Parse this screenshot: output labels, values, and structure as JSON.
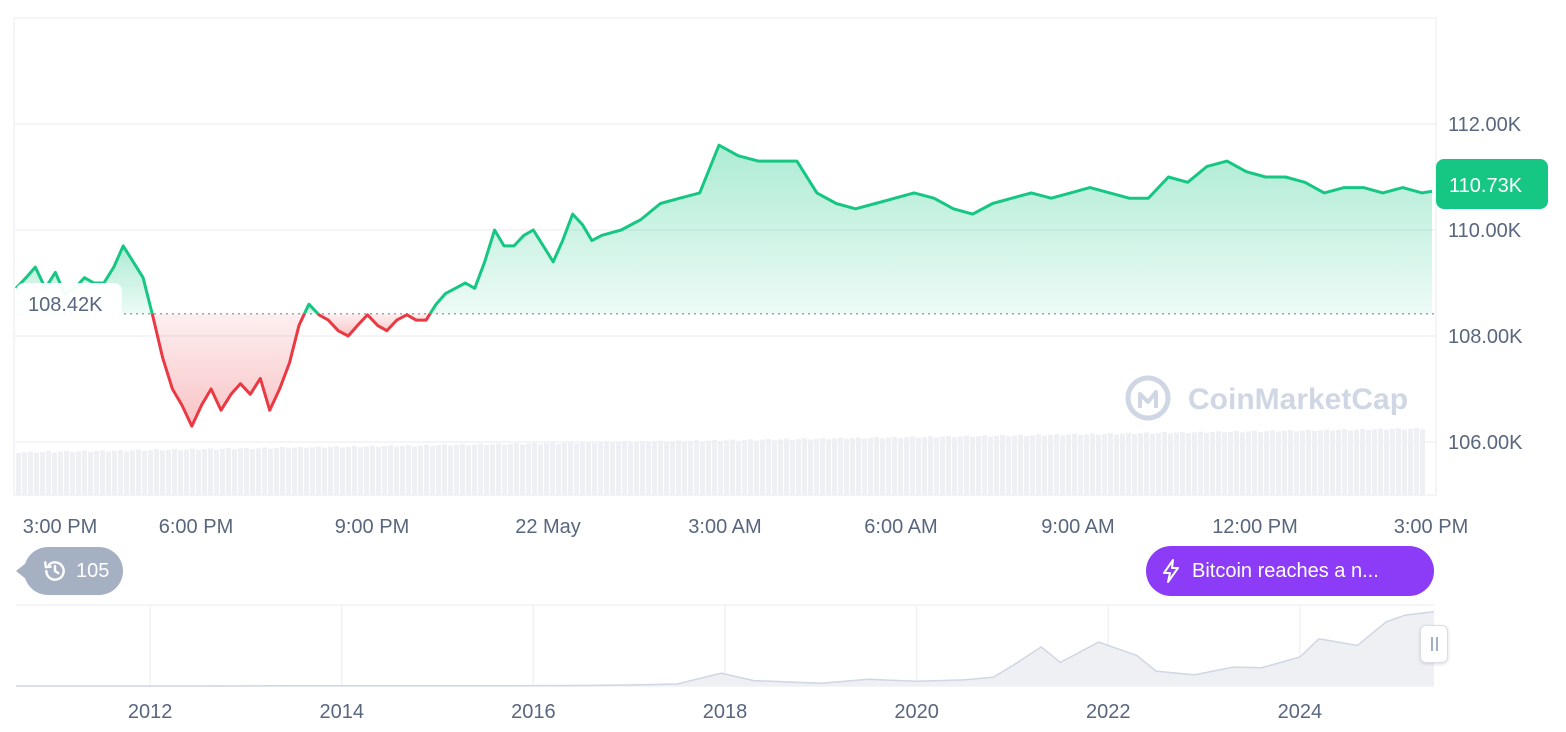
{
  "chart_data": [
    {
      "type": "line",
      "title": "",
      "x_tick_labels": [
        "3:00 PM",
        "6:00 PM",
        "9:00 PM",
        "22 May",
        "3:00 AM",
        "6:00 AM",
        "9:00 AM",
        "12:00 PM",
        "3:00 PM"
      ],
      "y_tick_labels": [
        "112.00K",
        "110.00K",
        "108.00K",
        "106.00K"
      ],
      "ylim": [
        105000,
        114000
      ],
      "baseline_value": 108420,
      "baseline_label": "108.42K",
      "current_price_label": "110.73K",
      "x_hours": [
        0,
        0.17,
        0.33,
        0.5,
        0.67,
        0.83,
        1.0,
        1.17,
        1.33,
        1.5,
        1.67,
        1.83,
        2.0,
        2.17,
        2.33,
        2.5,
        2.67,
        2.83,
        3.0,
        3.17,
        3.33,
        3.5,
        3.67,
        3.83,
        4.0,
        4.17,
        4.33,
        4.5,
        4.67,
        4.83,
        5.0,
        5.17,
        5.33,
        5.5,
        5.67,
        5.83,
        6.0,
        6.17,
        6.33,
        6.5,
        6.67,
        6.83,
        7.0,
        7.17,
        7.33,
        7.5,
        7.67,
        7.83,
        8.0,
        8.17,
        8.33,
        8.5,
        8.67,
        8.83,
        9.0,
        9.17,
        9.33,
        9.5,
        9.67,
        9.83,
        10.0,
        10.33,
        10.67,
        11.0,
        11.33,
        11.67,
        12.0,
        12.33,
        12.67,
        13.0,
        13.33,
        13.67,
        14.0,
        14.33,
        14.67,
        15.0,
        15.33,
        15.67,
        16.0,
        16.33,
        16.67,
        17.0,
        17.33,
        17.67,
        18.0,
        18.33,
        18.67,
        19.0,
        19.33,
        19.67,
        20.0,
        20.33,
        20.67,
        21.0,
        21.33,
        21.67,
        22.0,
        22.33,
        22.67,
        23.0,
        23.33,
        23.67,
        24.0,
        24.17
      ],
      "values": [
        108900,
        109100,
        109300,
        108900,
        109200,
        108800,
        108900,
        109100,
        109000,
        109000,
        109300,
        109700,
        109400,
        109100,
        108400,
        107600,
        107000,
        106700,
        106300,
        106700,
        107000,
        106600,
        106900,
        107100,
        106900,
        107200,
        106600,
        107000,
        107500,
        108200,
        108600,
        108400,
        108300,
        108100,
        108000,
        108200,
        108400,
        108200,
        108100,
        108300,
        108400,
        108300,
        108300,
        108600,
        108800,
        108900,
        109000,
        108900,
        109400,
        110000,
        109700,
        109700,
        109900,
        110000,
        109700,
        109400,
        109800,
        110300,
        110100,
        109800,
        109900,
        110000,
        110200,
        110500,
        110600,
        110700,
        111600,
        111400,
        111300,
        111300,
        111300,
        110700,
        110500,
        110400,
        110500,
        110600,
        110700,
        110600,
        110400,
        110300,
        110500,
        110600,
        110700,
        110600,
        110700,
        110800,
        110700,
        110600,
        110600,
        111000,
        110900,
        111200,
        111300,
        111100,
        111000,
        111000,
        110900,
        110700,
        110800,
        110800,
        110700,
        110800,
        110700,
        110730
      ],
      "colors": {
        "up": "#16c784",
        "down": "#ea3943",
        "up_fill": "#16c784",
        "down_fill": "#ea3943"
      },
      "grid": true
    },
    {
      "type": "area",
      "title": "",
      "x_tick_labels": [
        "2012",
        "2014",
        "2016",
        "2018",
        "2020",
        "2022",
        "2024"
      ],
      "x_years": [
        2010.6,
        2011.5,
        2012.5,
        2013.5,
        2014.5,
        2015.5,
        2016.5,
        2017.0,
        2017.5,
        2017.96,
        2018.3,
        2019.0,
        2019.5,
        2020.0,
        2020.5,
        2020.8,
        2021.0,
        2021.3,
        2021.5,
        2021.9,
        2022.3,
        2022.5,
        2022.9,
        2023.3,
        2023.6,
        2024.0,
        2024.2,
        2024.6,
        2024.9,
        2025.1,
        2025.4
      ],
      "values": [
        0,
        5,
        10,
        500,
        400,
        300,
        700,
        1500,
        3000,
        19000,
        8000,
        4000,
        10000,
        7000,
        9000,
        13000,
        30000,
        58000,
        35000,
        65000,
        45000,
        22000,
        16500,
        28000,
        27000,
        43000,
        70000,
        60000,
        95000,
        105000,
        110000
      ],
      "ylim": [
        0,
        120000
      ],
      "color": "#cfd6e4"
    }
  ],
  "watermark": "CoinMarketCap",
  "history_button": {
    "count": "105",
    "icon": "history-icon"
  },
  "news_pill": {
    "text": "Bitcoin reaches a n...",
    "icon": "lightning-icon"
  },
  "colors": {
    "accent_green": "#16c784",
    "accent_red": "#ea3943",
    "news_purple": "#8c3bf6",
    "axis_text": "#58667e"
  }
}
